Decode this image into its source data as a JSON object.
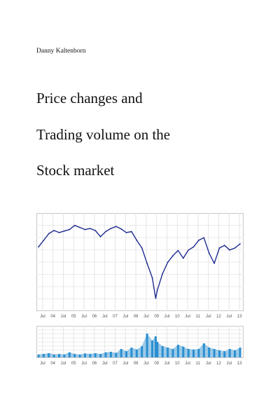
{
  "author": "Danny Kaltenborn",
  "title_lines": [
    "Price changes and",
    "Trading volume on the",
    "Stock market"
  ],
  "chart_data": [
    {
      "type": "line",
      "title": "",
      "x_tick_labels": [
        "Jul",
        "04",
        "Jul",
        "05",
        "Jul",
        "06",
        "Jul",
        "07",
        "Jul",
        "08",
        "Jul",
        "09",
        "Jul",
        "10",
        "Jul",
        "11",
        "Jul",
        "12",
        "Jul",
        "13"
      ],
      "grid": true,
      "legend": "none",
      "series": [
        {
          "color": "#1f2b8f",
          "x": [
            "2003-07",
            "2003-10",
            "2004-01",
            "2004-04",
            "2004-07",
            "2004-10",
            "2005-01",
            "2005-04",
            "2005-07",
            "2005-10",
            "2006-01",
            "2006-04",
            "2006-07",
            "2006-10",
            "2007-01",
            "2007-04",
            "2007-07",
            "2007-10",
            "2008-01",
            "2008-04",
            "2008-07",
            "2008-10",
            "2009-01",
            "2009-03",
            "2009-04",
            "2009-07",
            "2009-10",
            "2010-01",
            "2010-04",
            "2010-07",
            "2010-10",
            "2011-01",
            "2011-04",
            "2011-07",
            "2011-10",
            "2012-01",
            "2012-04",
            "2012-07",
            "2012-10",
            "2013-01",
            "2013-04"
          ],
          "values": [
            0.42,
            0.55,
            0.68,
            0.74,
            0.7,
            0.73,
            0.76,
            0.84,
            0.8,
            0.76,
            0.78,
            0.74,
            0.62,
            0.72,
            0.78,
            0.82,
            0.77,
            0.7,
            0.72,
            0.55,
            0.4,
            0.1,
            -0.18,
            -0.58,
            -0.42,
            -0.1,
            0.12,
            0.25,
            0.35,
            0.2,
            0.36,
            0.42,
            0.55,
            0.6,
            0.3,
            0.1,
            0.4,
            0.45,
            0.36,
            0.4,
            0.48
          ]
        }
      ]
    },
    {
      "type": "bar",
      "title": "",
      "x_tick_labels": [
        "Jul",
        "04",
        "Jul",
        "05",
        "Jul",
        "06",
        "Jul",
        "07",
        "Jul",
        "08",
        "Jul",
        "09",
        "Jul",
        "10",
        "Jul",
        "11",
        "Jul",
        "12",
        "Jul",
        "13"
      ],
      "grid": true,
      "legend": "none",
      "series": [
        {
          "color": "#2b8fd0",
          "x": [
            "2003-07",
            "2003-10",
            "2004-01",
            "2004-04",
            "2004-07",
            "2004-10",
            "2005-01",
            "2005-04",
            "2005-07",
            "2005-10",
            "2006-01",
            "2006-04",
            "2006-07",
            "2006-10",
            "2007-01",
            "2007-04",
            "2007-07",
            "2007-10",
            "2008-01",
            "2008-04",
            "2008-07",
            "2008-10",
            "2009-01",
            "2009-03",
            "2009-04",
            "2009-07",
            "2009-10",
            "2010-01",
            "2010-04",
            "2010-07",
            "2010-10",
            "2011-01",
            "2011-04",
            "2011-07",
            "2011-10",
            "2012-01",
            "2012-04",
            "2012-07",
            "2012-10",
            "2013-01",
            "2013-04"
          ],
          "values": [
            0.1,
            0.12,
            0.15,
            0.1,
            0.12,
            0.1,
            0.18,
            0.12,
            0.1,
            0.14,
            0.12,
            0.15,
            0.12,
            0.18,
            0.2,
            0.16,
            0.3,
            0.22,
            0.35,
            0.28,
            0.4,
            0.85,
            0.6,
            0.75,
            0.55,
            0.4,
            0.35,
            0.3,
            0.45,
            0.38,
            0.3,
            0.28,
            0.3,
            0.5,
            0.35,
            0.3,
            0.25,
            0.22,
            0.3,
            0.25,
            0.35
          ]
        }
      ]
    }
  ]
}
